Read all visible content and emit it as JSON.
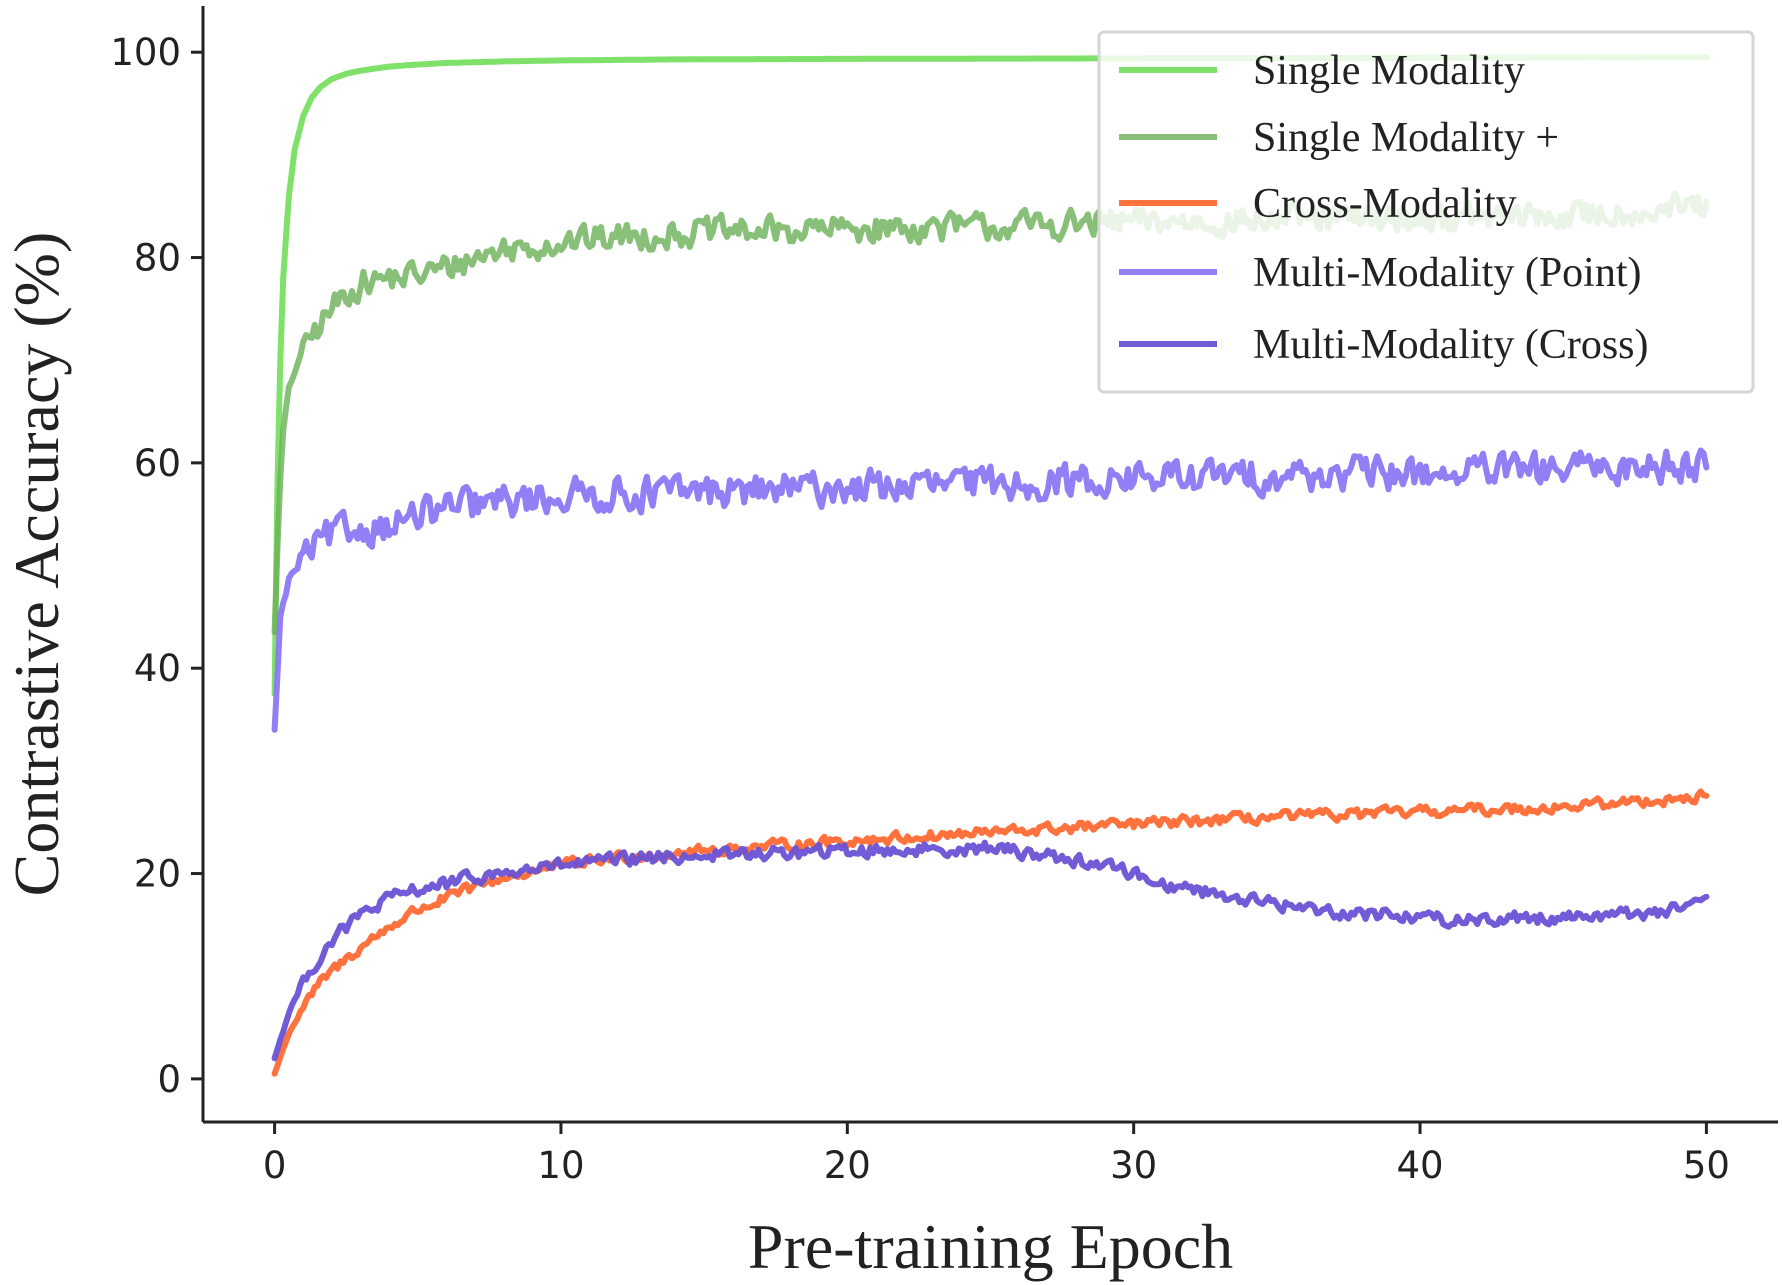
{
  "chart_data": {
    "type": "line",
    "title": "",
    "xlabel": "Pre-training Epoch",
    "ylabel": "Contrastive Accuracy (%)",
    "xlim": [
      -2.5,
      52.5
    ],
    "ylim": [
      -4.2,
      104.5
    ],
    "xticks": [
      0,
      10,
      20,
      30,
      40,
      50
    ],
    "yticks": [
      0,
      20,
      40,
      60,
      80,
      100
    ],
    "grid": false,
    "legend_position": "top-right",
    "series": [
      {
        "name": "Single Modality",
        "color": "#7fe06a",
        "opacity": 1.0,
        "x": [
          0,
          0.1,
          0.2,
          0.3,
          0.5,
          0.7,
          1.0,
          1.3,
          1.6,
          2.0,
          2.5,
          3.0,
          3.5,
          4.0,
          5.0,
          6.0,
          8.0,
          10.0,
          14.0,
          20.0,
          30.0,
          40.0,
          50.0
        ],
        "y": [
          37.5,
          58.0,
          70.0,
          78.0,
          86.0,
          90.5,
          93.8,
          95.6,
          96.6,
          97.4,
          97.9,
          98.2,
          98.4,
          98.6,
          98.8,
          98.95,
          99.1,
          99.2,
          99.3,
          99.35,
          99.4,
          99.45,
          99.5
        ],
        "noise": 0
      },
      {
        "name": "Single Modality +",
        "color": "#6bb058",
        "opacity": 0.8,
        "x": [
          0,
          0.15,
          0.3,
          0.5,
          0.8,
          1.2,
          1.6,
          2.0,
          2.5,
          3.0,
          4.0,
          5.0,
          6.0,
          7.0,
          8.0,
          10.0,
          12.0,
          15.0,
          18.0,
          20.0,
          25.0,
          30.0,
          35.0,
          40.0,
          45.0,
          50.0
        ],
        "y": [
          43.5,
          56.0,
          63.0,
          67.0,
          70.0,
          72.0,
          73.5,
          75.0,
          76.5,
          77.5,
          78.0,
          78.3,
          79.0,
          80.0,
          80.8,
          81.5,
          82.0,
          82.5,
          82.6,
          82.8,
          83.0,
          83.4,
          83.6,
          83.8,
          84.0,
          85.0
        ],
        "noise": 1.9
      },
      {
        "name": "Cross-Modality",
        "color": "#ff6a33",
        "opacity": 0.95,
        "x": [
          0,
          0.5,
          1.0,
          1.5,
          2.0,
          3.0,
          4.0,
          5.0,
          6.0,
          7.0,
          8.0,
          10.0,
          12.0,
          15.0,
          18.0,
          20.0,
          25.0,
          30.0,
          35.0,
          40.0,
          45.0,
          50.0
        ],
        "y": [
          0.5,
          4.5,
          7.0,
          9.0,
          10.5,
          12.8,
          14.8,
          16.5,
          17.6,
          18.7,
          19.6,
          20.8,
          21.6,
          22.2,
          22.8,
          23.2,
          24.0,
          24.8,
          25.5,
          26.0,
          26.5,
          27.5
        ],
        "noise": 0.75
      },
      {
        "name": "Multi-Modality (Point)",
        "color": "#8c78f5",
        "opacity": 0.95,
        "x": [
          0,
          0.2,
          0.5,
          1.0,
          1.5,
          2.0,
          3.0,
          4.0,
          5.0,
          6.0,
          8.0,
          10.0,
          12.0,
          15.0,
          18.0,
          20.0,
          25.0,
          30.0,
          35.0,
          40.0,
          45.0,
          50.0
        ],
        "y": [
          34.0,
          45.0,
          48.5,
          51.0,
          52.0,
          53.0,
          53.5,
          54.0,
          54.8,
          55.5,
          56.2,
          56.8,
          57.0,
          57.2,
          57.4,
          57.6,
          58.0,
          58.5,
          58.8,
          59.0,
          59.3,
          60.0
        ],
        "noise": 2.3
      },
      {
        "name": "Multi-Modality (Cross)",
        "color": "#6a52d4",
        "opacity": 0.95,
        "x": [
          0,
          0.5,
          1.0,
          1.5,
          2.0,
          3.0,
          4.0,
          5.0,
          6.0,
          7.0,
          8.0,
          10.0,
          12.0,
          15.0,
          18.0,
          20.0,
          22.0,
          25.0,
          27.0,
          29.5,
          30.0,
          31.0,
          33.0,
          35.0,
          37.0,
          40.0,
          41.0,
          43.0,
          45.0,
          48.0,
          50.0
        ],
        "y": [
          2.0,
          6.5,
          9.5,
          11.5,
          13.5,
          16.0,
          17.5,
          18.5,
          19.0,
          19.6,
          20.0,
          20.8,
          21.3,
          21.8,
          22.0,
          22.2,
          22.3,
          22.5,
          21.8,
          20.5,
          20.0,
          19.0,
          18.0,
          17.0,
          16.3,
          15.8,
          15.5,
          15.6,
          15.8,
          16.2,
          17.0
        ],
        "noise": 0.9
      }
    ]
  }
}
